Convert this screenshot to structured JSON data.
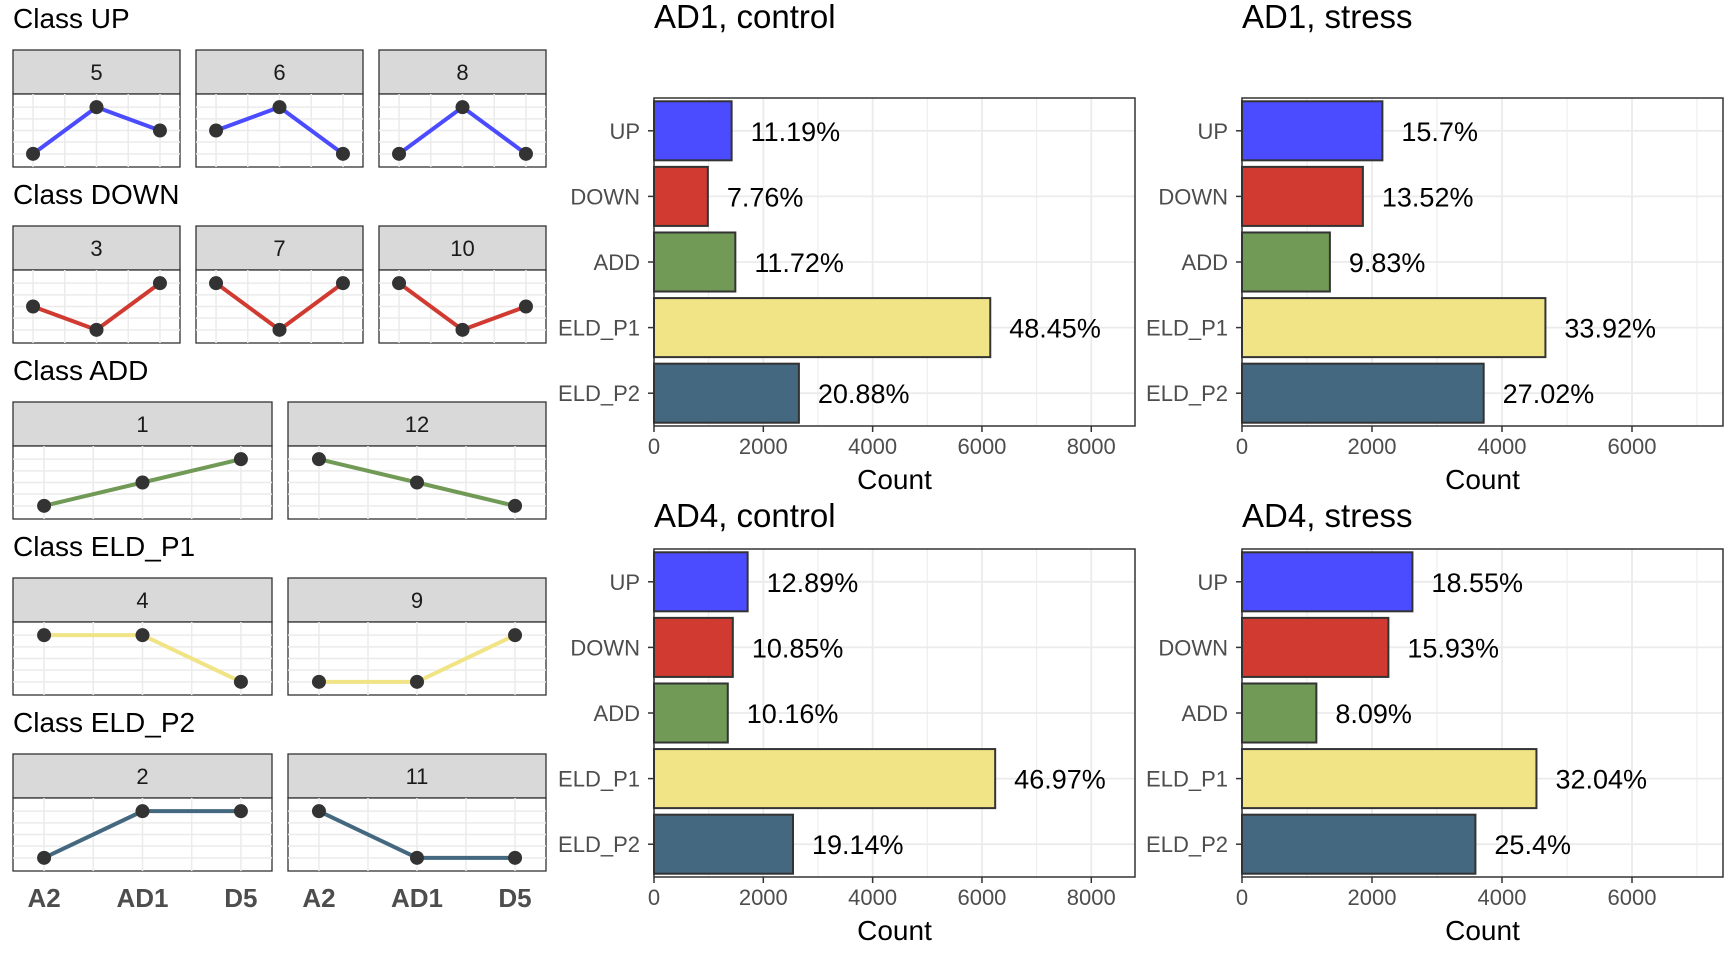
{
  "colors": {
    "UP": "#4B4BFF",
    "DOWN": "#D03A30",
    "ADD": "#709A55",
    "ELD_P1": "#F0E486",
    "ELD_P2": "#43687F",
    "strip_fill": "#D9D9D9",
    "grid": "#EBEBEB",
    "point": "#333333"
  },
  "patterns": {
    "x_labels": [
      "A2",
      "AD1",
      "D5"
    ],
    "classes": [
      {
        "key": "UP",
        "title": "Class UP",
        "panels": [
          {
            "id": "5",
            "values": [
              0,
              1,
              0.5
            ]
          },
          {
            "id": "6",
            "values": [
              0.5,
              1,
              0
            ]
          },
          {
            "id": "8",
            "values": [
              0,
              1,
              0
            ]
          }
        ]
      },
      {
        "key": "DOWN",
        "title": "Class DOWN",
        "panels": [
          {
            "id": "3",
            "values": [
              0.5,
              0,
              1
            ]
          },
          {
            "id": "7",
            "values": [
              1,
              0,
              1
            ]
          },
          {
            "id": "10",
            "values": [
              1,
              0,
              0.5
            ]
          }
        ]
      },
      {
        "key": "ADD",
        "title": "Class ADD",
        "panels": [
          {
            "id": "1",
            "values": [
              0,
              0.5,
              1
            ]
          },
          {
            "id": "12",
            "values": [
              1,
              0.5,
              0
            ]
          }
        ]
      },
      {
        "key": "ELD_P1",
        "title": "Class ELD_P1",
        "panels": [
          {
            "id": "4",
            "values": [
              1,
              1,
              0
            ]
          },
          {
            "id": "9",
            "values": [
              0,
              0,
              1
            ]
          }
        ]
      },
      {
        "key": "ELD_P2",
        "title": "Class ELD_P2",
        "panels": [
          {
            "id": "2",
            "values": [
              0,
              1,
              1
            ]
          },
          {
            "id": "11",
            "values": [
              1,
              0,
              0
            ]
          }
        ]
      }
    ]
  },
  "chart_data": [
    {
      "type": "bar",
      "orientation": "horizontal",
      "title": "AD1, control",
      "xlabel": "Count",
      "categories": [
        "UP",
        "DOWN",
        "ADD",
        "ELD_P1",
        "ELD_P2"
      ],
      "values": [
        1420,
        985,
        1488,
        6152,
        2651
      ],
      "labels": [
        "11.19%",
        "7.76%",
        "11.72%",
        "48.45%",
        "20.88%"
      ],
      "xlim": [
        0,
        8800
      ],
      "xticks": [
        0,
        2000,
        4000,
        6000,
        8000
      ],
      "grid": true
    },
    {
      "type": "bar",
      "orientation": "horizontal",
      "title": "AD1, stress",
      "xlabel": "Count",
      "categories": [
        "UP",
        "DOWN",
        "ADD",
        "ELD_P1",
        "ELD_P2"
      ],
      "values": [
        2160,
        1860,
        1352,
        4668,
        3718
      ],
      "labels": [
        "15.7%",
        "13.52%",
        "9.83%",
        "33.92%",
        "27.02%"
      ],
      "xlim": [
        0,
        7400
      ],
      "xticks": [
        0,
        2000,
        4000,
        6000
      ],
      "grid": true
    },
    {
      "type": "bar",
      "orientation": "horizontal",
      "title": "AD4, control",
      "xlabel": "Count",
      "categories": [
        "UP",
        "DOWN",
        "ADD",
        "ELD_P1",
        "ELD_P2"
      ],
      "values": [
        1713,
        1442,
        1350,
        6242,
        2543
      ],
      "labels": [
        "12.89%",
        "10.85%",
        "10.16%",
        "46.97%",
        "19.14%"
      ],
      "xlim": [
        0,
        8800
      ],
      "xticks": [
        0,
        2000,
        4000,
        6000,
        8000
      ],
      "grid": true
    },
    {
      "type": "bar",
      "orientation": "horizontal",
      "title": "AD4, stress",
      "xlabel": "Count",
      "categories": [
        "UP",
        "DOWN",
        "ADD",
        "ELD_P1",
        "ELD_P2"
      ],
      "values": [
        2622,
        2252,
        1144,
        4530,
        3591
      ],
      "labels": [
        "18.55%",
        "15.93%",
        "8.09%",
        "32.04%",
        "25.4%"
      ],
      "xlim": [
        0,
        7400
      ],
      "xticks": [
        0,
        2000,
        4000,
        6000
      ],
      "grid": true
    }
  ]
}
